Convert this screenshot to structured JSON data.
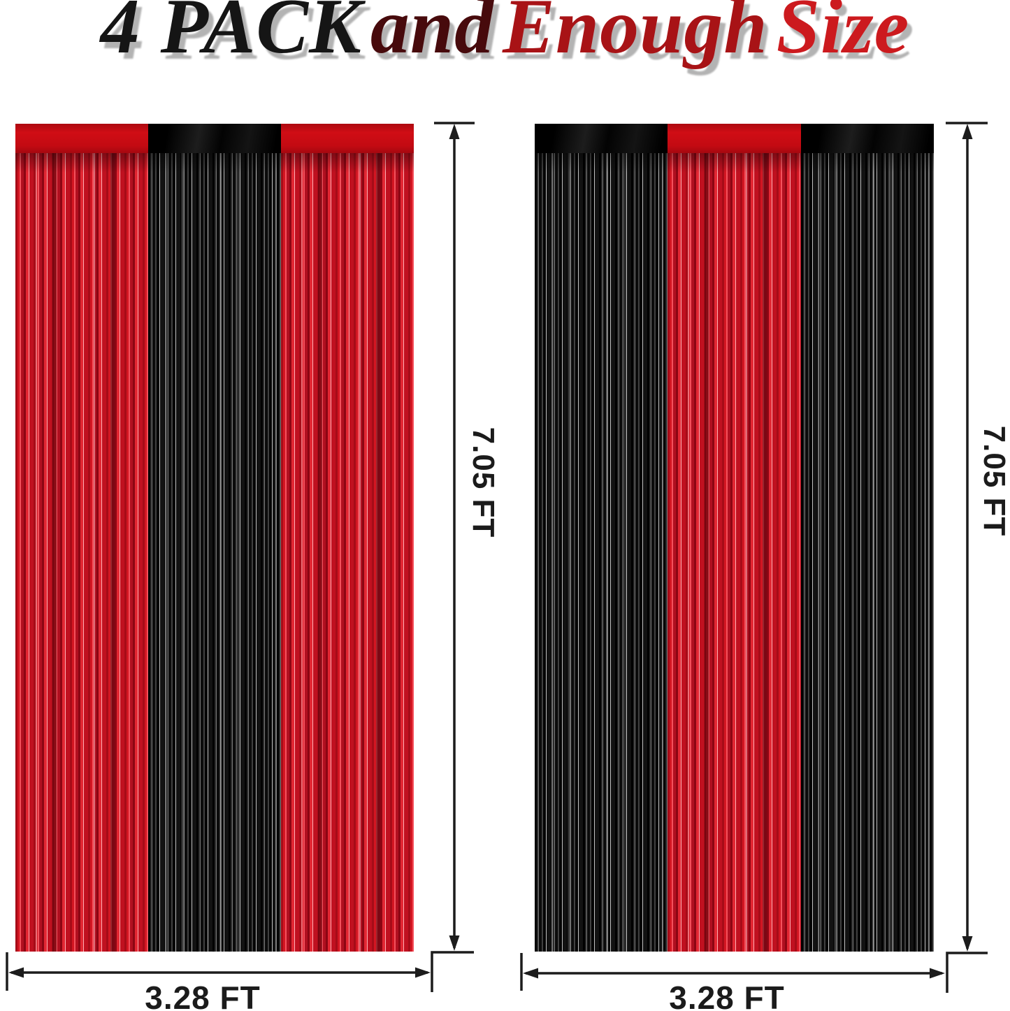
{
  "title": {
    "word1": "4 PACK",
    "word2": "and",
    "word3": "Enough",
    "word4": "Size"
  },
  "panels": [
    {
      "id": "left",
      "stripes": [
        "red",
        "black",
        "red"
      ],
      "height_label": "7.05 FT",
      "width_label": "3.28 FT"
    },
    {
      "id": "right",
      "stripes": [
        "black",
        "red",
        "black"
      ],
      "height_label": "7.05 FT",
      "width_label": "3.28 FT"
    }
  ],
  "colors": {
    "title_black": "#151515",
    "title_maroon": "#470a0c",
    "title_dark_red": "#a81316",
    "title_bright_red": "#cc1a1e",
    "title_shadow": "#b3b3b3",
    "foil_red": "#c11320",
    "foil_black": "#0d0d0d",
    "dimension_line": "#1c1c1c",
    "background": "#ffffff"
  }
}
